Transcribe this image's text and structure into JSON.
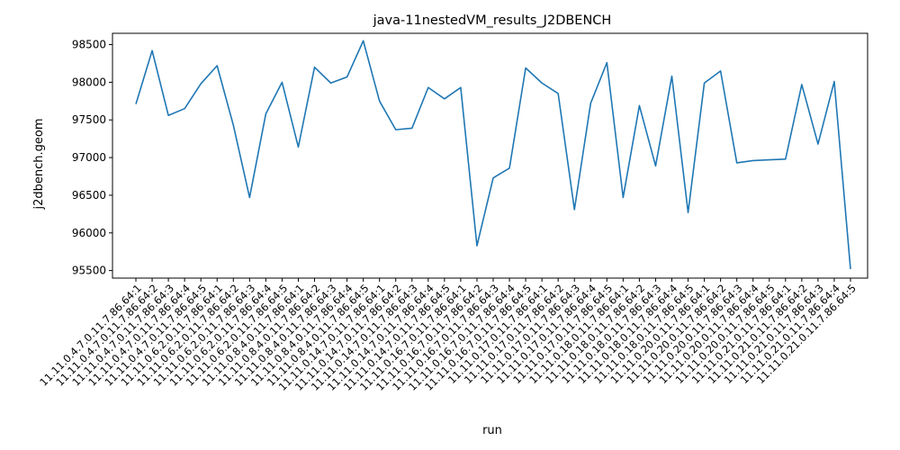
{
  "colors": {
    "line": "#1f77b4",
    "axis": "#000000",
    "background": "#ffffff"
  },
  "chart_data": {
    "type": "line",
    "title": "java-11nestedVM_results_J2DBENCH",
    "xlabel": "run",
    "ylabel": "j2dbench.geom",
    "ylim": [
      95400,
      98650
    ],
    "yticks": [
      95500,
      96000,
      96500,
      97000,
      97500,
      98000,
      98500
    ],
    "grid": false,
    "categories": [
      "11.11.0.4.7.0.11.7.86.64:1",
      "11.11.0.4.7.0.11.7.86.64:2",
      "11.11.0.4.7.0.11.7.86.64:3",
      "11.11.0.4.7.0.11.7.86.64:4",
      "11.11.0.4.7.0.11.7.86.64:5",
      "11.11.0.6.2.0.11.7.86.64:1",
      "11.11.0.6.2.0.11.7.86.64:2",
      "11.11.0.6.2.0.11.7.86.64:3",
      "11.11.0.6.2.0.11.7.86.64:4",
      "11.11.0.6.2.0.11.7.86.64:5",
      "11.11.0.8.4.0.11.7.86.64:1",
      "11.11.0.8.4.0.11.7.86.64:2",
      "11.11.0.8.4.0.11.7.86.64:3",
      "11.11.0.8.4.0.11.7.86.64:4",
      "11.11.0.8.4.0.11.7.86.64:5",
      "11.11.0.14.7.0.11.7.86.64:1",
      "11.11.0.14.7.0.11.7.86.64:2",
      "11.11.0.14.7.0.11.7.86.64:3",
      "11.11.0.14.7.0.11.7.86.64:4",
      "11.11.0.14.7.0.11.7.86.64:5",
      "11.11.0.16.7.0.11.7.86.64:1",
      "11.11.0.16.7.0.11.7.86.64:2",
      "11.11.0.16.7.0.11.7.86.64:3",
      "11.11.0.16.7.0.11.7.86.64:4",
      "11.11.0.16.7.0.11.7.86.64:5",
      "11.11.0.17.0.11.7.86.64:1",
      "11.11.0.17.0.11.7.86.64:2",
      "11.11.0.17.0.11.7.86.64:3",
      "11.11.0.17.0.11.7.86.64:4",
      "11.11.0.17.0.11.7.86.64:5",
      "11.11.0.18.0.11.7.86.64:1",
      "11.11.0.18.0.11.7.86.64:2",
      "11.11.0.18.0.11.7.86.64:3",
      "11.11.0.18.0.11.7.86.64:4",
      "11.11.0.18.0.11.7.86.64:5",
      "11.11.0.20.0.11.7.86.64:1",
      "11.11.0.20.0.11.7.86.64:2",
      "11.11.0.20.0.11.7.86.64:3",
      "11.11.0.20.0.11.7.86.64:4",
      "11.11.0.20.0.11.7.86.64:5",
      "11.11.0.21.0.11.7.86.64:1",
      "11.11.0.21.0.11.7.86.64:2",
      "11.11.0.21.0.11.7.86.64:3",
      "11.11.0.21.0.11.7.86.64:4",
      "11.11.0.21.0.11.7.86.64:5"
    ],
    "series": [
      {
        "values": [
          97710,
          98420,
          97560,
          97650,
          97980,
          98220,
          97430,
          96470,
          97580,
          98000,
          97140,
          98200,
          97990,
          98070,
          98550,
          97750,
          97370,
          97390,
          97930,
          97780,
          97930,
          95830,
          96730,
          96860,
          98190,
          97990,
          97850,
          96310,
          97720,
          98260,
          96470,
          97690,
          96890,
          98080,
          96270,
          97990,
          98150,
          96930,
          96960,
          96970,
          96980,
          97970,
          97180,
          98010,
          95520
        ]
      }
    ]
  }
}
